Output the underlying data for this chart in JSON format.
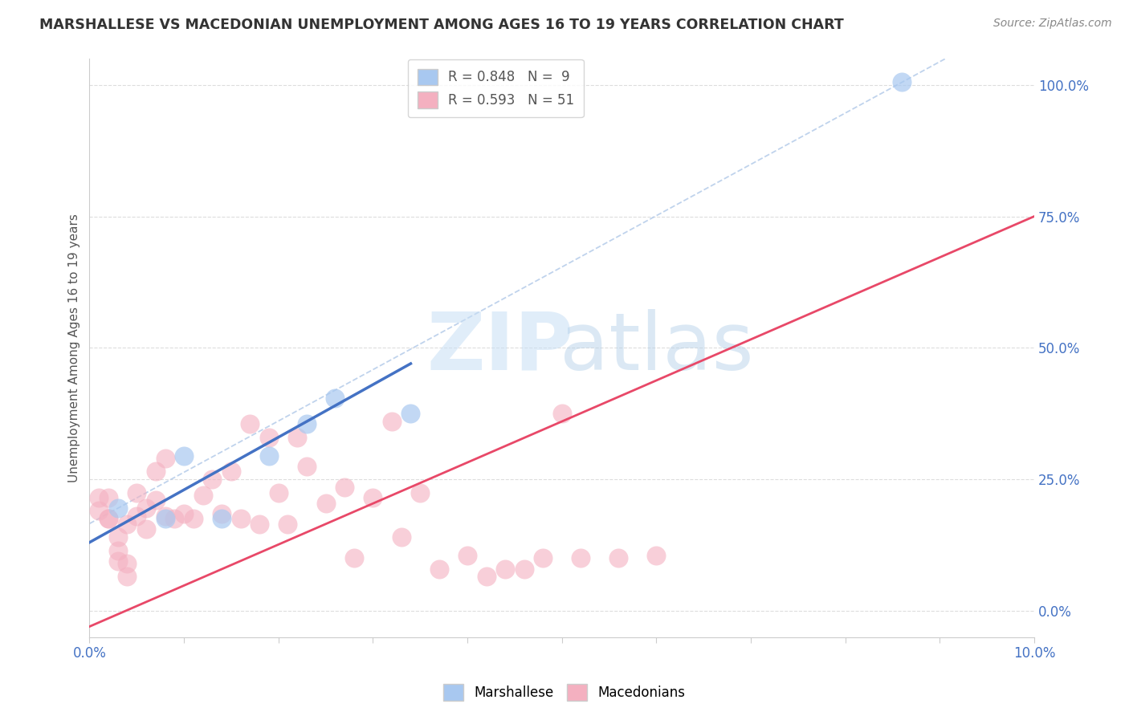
{
  "title": "MARSHALLESE VS MACEDONIAN UNEMPLOYMENT AMONG AGES 16 TO 19 YEARS CORRELATION CHART",
  "source": "Source: ZipAtlas.com",
  "ylabel": "Unemployment Among Ages 16 to 19 years",
  "xlim": [
    0.0,
    0.1
  ],
  "ylim": [
    -0.05,
    1.05
  ],
  "right_ytick_labels": [
    "0.0%",
    "25.0%",
    "50.0%",
    "75.0%",
    "100.0%"
  ],
  "right_ytick_vals": [
    0.0,
    0.25,
    0.5,
    0.75,
    1.0
  ],
  "legend_blue_label": "R = 0.848   N =  9",
  "legend_pink_label": "R = 0.593   N = 51",
  "blue_dot_color": "#A8C8F0",
  "pink_dot_color": "#F4B0C0",
  "blue_line_color": "#4472C4",
  "pink_line_color": "#E84868",
  "ref_line_color": "#B0C8E8",
  "grid_color": "#DDDDDD",
  "marshallese_x": [
    0.003,
    0.008,
    0.01,
    0.014,
    0.019,
    0.023,
    0.026,
    0.034,
    0.086
  ],
  "marshallese_y": [
    0.195,
    0.175,
    0.295,
    0.175,
    0.295,
    0.355,
    0.405,
    0.375,
    1.005
  ],
  "macedonian_x": [
    0.001,
    0.001,
    0.002,
    0.002,
    0.003,
    0.003,
    0.004,
    0.004,
    0.005,
    0.005,
    0.006,
    0.007,
    0.007,
    0.008,
    0.009,
    0.01,
    0.011,
    0.012,
    0.013,
    0.014,
    0.015,
    0.016,
    0.017,
    0.018,
    0.019,
    0.02,
    0.021,
    0.022,
    0.023,
    0.025,
    0.027,
    0.028,
    0.03,
    0.032,
    0.033,
    0.035,
    0.037,
    0.04,
    0.042,
    0.044,
    0.046,
    0.048,
    0.05,
    0.052,
    0.056,
    0.06,
    0.002,
    0.003,
    0.004,
    0.006,
    0.008
  ],
  "macedonian_y": [
    0.19,
    0.215,
    0.175,
    0.215,
    0.115,
    0.14,
    0.09,
    0.165,
    0.18,
    0.225,
    0.195,
    0.21,
    0.265,
    0.18,
    0.175,
    0.185,
    0.175,
    0.22,
    0.25,
    0.185,
    0.265,
    0.175,
    0.355,
    0.165,
    0.33,
    0.225,
    0.165,
    0.33,
    0.275,
    0.205,
    0.235,
    0.1,
    0.215,
    0.36,
    0.14,
    0.225,
    0.08,
    0.105,
    0.065,
    0.08,
    0.08,
    0.1,
    0.375,
    0.1,
    0.1,
    0.105,
    0.175,
    0.095,
    0.065,
    0.155,
    0.29
  ],
  "blue_line_x0": 0.0,
  "blue_line_y0": 0.13,
  "blue_line_x1": 0.034,
  "blue_line_y1": 0.47,
  "pink_line_x0": 0.0,
  "pink_line_y0": -0.03,
  "pink_line_x1": 0.1,
  "pink_line_y1": 0.75
}
